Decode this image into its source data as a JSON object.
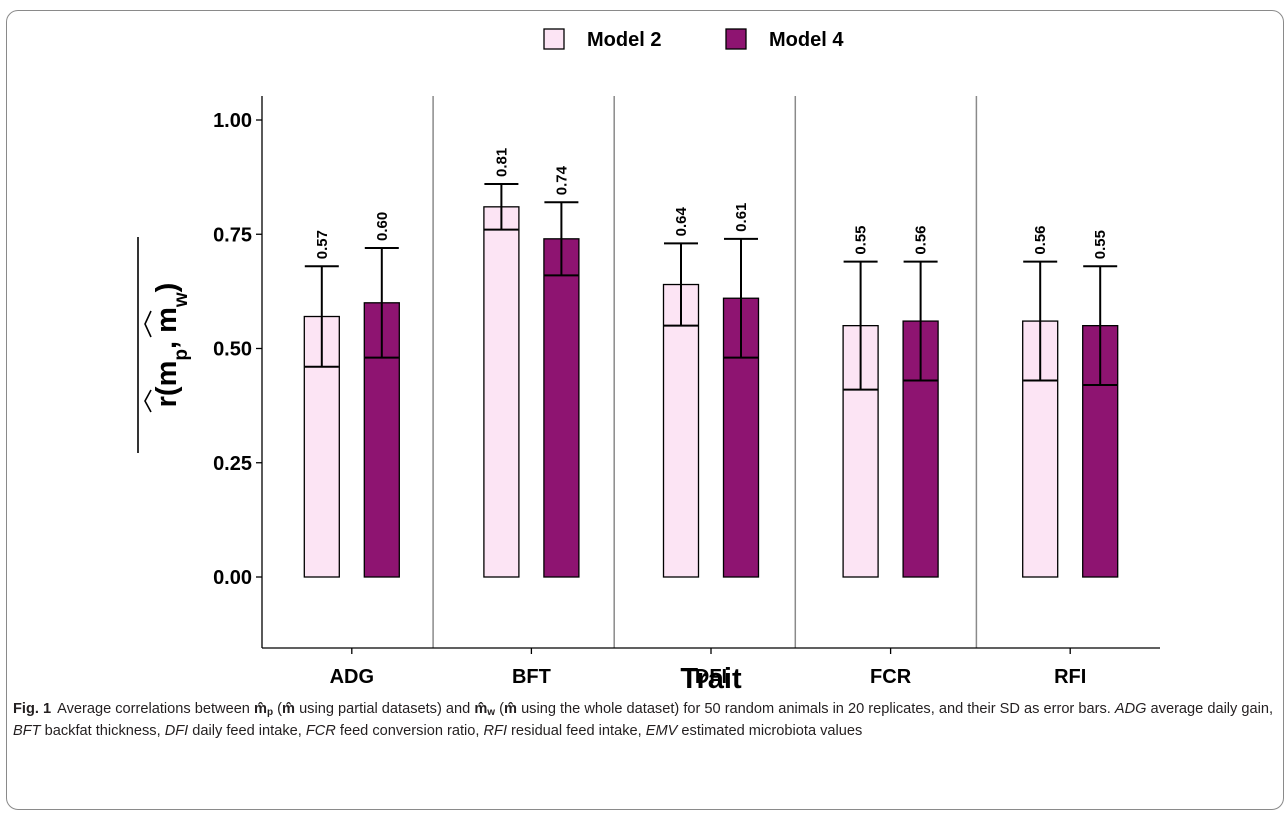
{
  "chart_data": {
    "type": "bar",
    "categories": [
      "ADG",
      "BFT",
      "DFI",
      "FCR",
      "RFI"
    ],
    "series": [
      {
        "name": "Model 2",
        "values": [
          0.57,
          0.81,
          0.64,
          0.55,
          0.56
        ],
        "sd": [
          0.11,
          0.05,
          0.09,
          0.14,
          0.13
        ],
        "color": "#fce4f4",
        "labels": [
          "0.57",
          "0.81",
          "0.64",
          "0.55",
          "0.56"
        ]
      },
      {
        "name": "Model 4",
        "values": [
          0.6,
          0.74,
          0.61,
          0.56,
          0.55
        ],
        "sd": [
          0.12,
          0.08,
          0.13,
          0.13,
          0.13
        ],
        "color": "#8e1471",
        "labels": [
          "0.60",
          "0.74",
          "0.61",
          "0.56",
          "0.55"
        ]
      }
    ],
    "error_bars": "SD",
    "xlabel": "Trait",
    "ylabel": "r(m̂p, m̂w)",
    "ylim": [
      -0.15,
      1.05
    ],
    "yticks": [
      0.0,
      0.25,
      0.5,
      0.75,
      1.0
    ],
    "ytick_labels": [
      "0.00",
      "0.25",
      "0.50",
      "0.75",
      "1.00"
    ],
    "legend_position": "top-center",
    "grid": false,
    "facet_separators": true
  },
  "caption": {
    "label": "Fig. 1",
    "part1": "Average correlations between",
    "mp": "m̂",
    "mp_sub": "p",
    "part2": "(",
    "m_hat": "m̂",
    "part3": "using partial datasets) and",
    "mw": "m̂",
    "mw_sub": "w",
    "part4": "(",
    "m_hat2": "m̂",
    "part5": "using the whole dataset) for 50 random animals in 20 replicates, and their SD as error bars.",
    "abbrevs": [
      {
        "abbr": "ADG",
        "def": "average daily gain,"
      },
      {
        "abbr": "BFT",
        "def": "backfat thickness,"
      },
      {
        "abbr": "DFI",
        "def": "daily feed intake,"
      },
      {
        "abbr": "FCR",
        "def": "feed conversion ratio,"
      },
      {
        "abbr": "RFI",
        "def": "residual feed intake,"
      },
      {
        "abbr": "EMV",
        "def": "estimated microbiota values"
      }
    ]
  }
}
